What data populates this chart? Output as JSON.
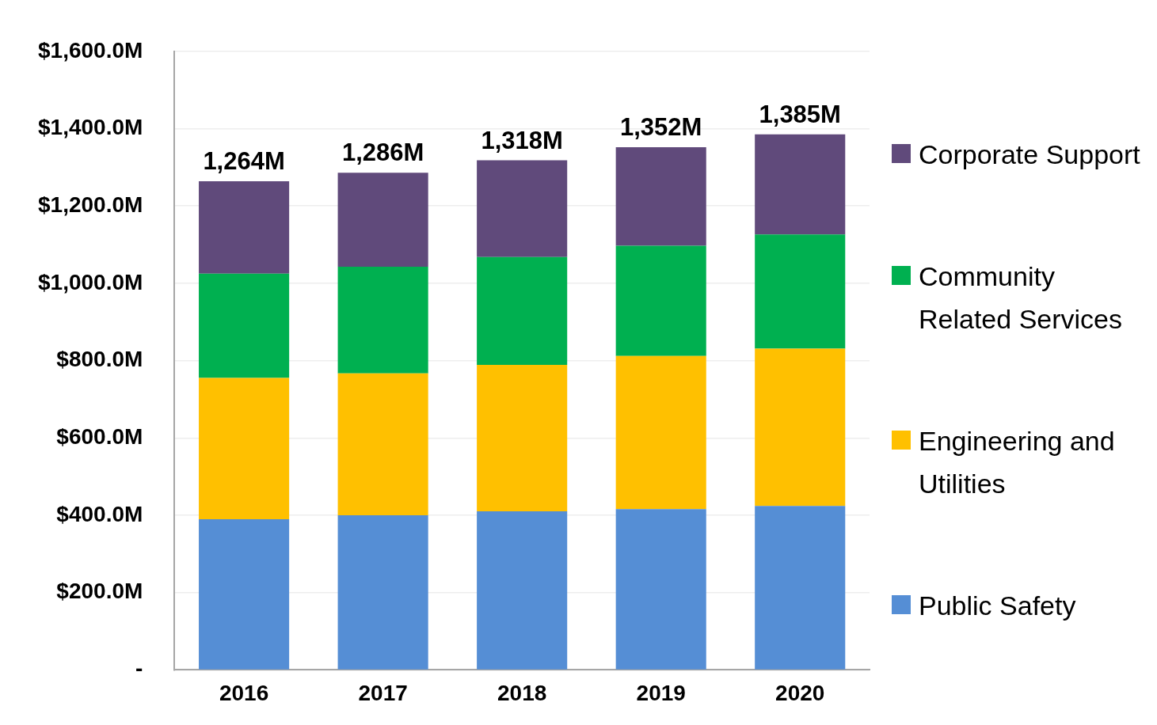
{
  "chart_data": {
    "type": "bar",
    "stacked": true,
    "categories": [
      "2016",
      "2017",
      "2018",
      "2019",
      "2020"
    ],
    "series": [
      {
        "name": "Public Safety",
        "color": "#558ed5",
        "values": [
          390,
          400,
          410,
          416,
          424
        ]
      },
      {
        "name": "Engineering and Utilities",
        "color": "#ffc000",
        "values": [
          365,
          367,
          379,
          396,
          407
        ]
      },
      {
        "name": "Community Related Services",
        "color": "#00b050",
        "values": [
          270,
          276,
          279,
          285,
          295
        ]
      },
      {
        "name": "Corporate Support",
        "color": "#604a7b",
        "values": [
          239,
          243,
          250,
          255,
          259
        ]
      }
    ],
    "ylim": [
      0,
      1600
    ],
    "yticks": [
      {
        "value": 0,
        "label": "-"
      },
      {
        "value": 200,
        "label": "$200.0M"
      },
      {
        "value": 400,
        "label": "$400.0M"
      },
      {
        "value": 600,
        "label": "$600.0M"
      },
      {
        "value": 800,
        "label": "$800.0M"
      },
      {
        "value": 1000,
        "label": "$1,000.0M"
      },
      {
        "value": 1200,
        "label": "$1,200.0M"
      },
      {
        "value": 1400,
        "label": "$1,400.0M"
      },
      {
        "value": 1600,
        "label": "$1,600.0M"
      }
    ],
    "totals": [
      "1,264M",
      "1,286M",
      "1,318M",
      "1,352M",
      "1,385M"
    ],
    "grid": "y",
    "legend": "right"
  }
}
